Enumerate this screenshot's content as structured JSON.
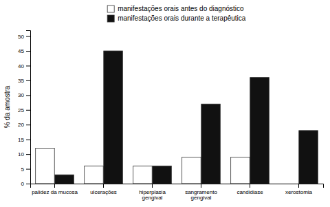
{
  "chart_data": {
    "type": "bar",
    "categories": [
      "palidez da mucosa",
      "ulcerações",
      "hiperplasia\ngengival",
      "sangramento\ngengival",
      "candidiase",
      "xerostomia"
    ],
    "series": [
      {
        "name": "manifestações orais antes do diagnóstico",
        "color": "#ffffff",
        "values": [
          12,
          6,
          6,
          9,
          9,
          0
        ]
      },
      {
        "name": "manifestações orais durante a terapêutica",
        "color": "#111111",
        "values": [
          3,
          45,
          6,
          27,
          36,
          18
        ]
      }
    ],
    "ylabel": "% da amostra",
    "ylim": [
      0,
      52
    ],
    "yticks": [
      0,
      5,
      10,
      15,
      20,
      25,
      30,
      35,
      40,
      45,
      50
    ],
    "grid": false,
    "legend": "top"
  }
}
